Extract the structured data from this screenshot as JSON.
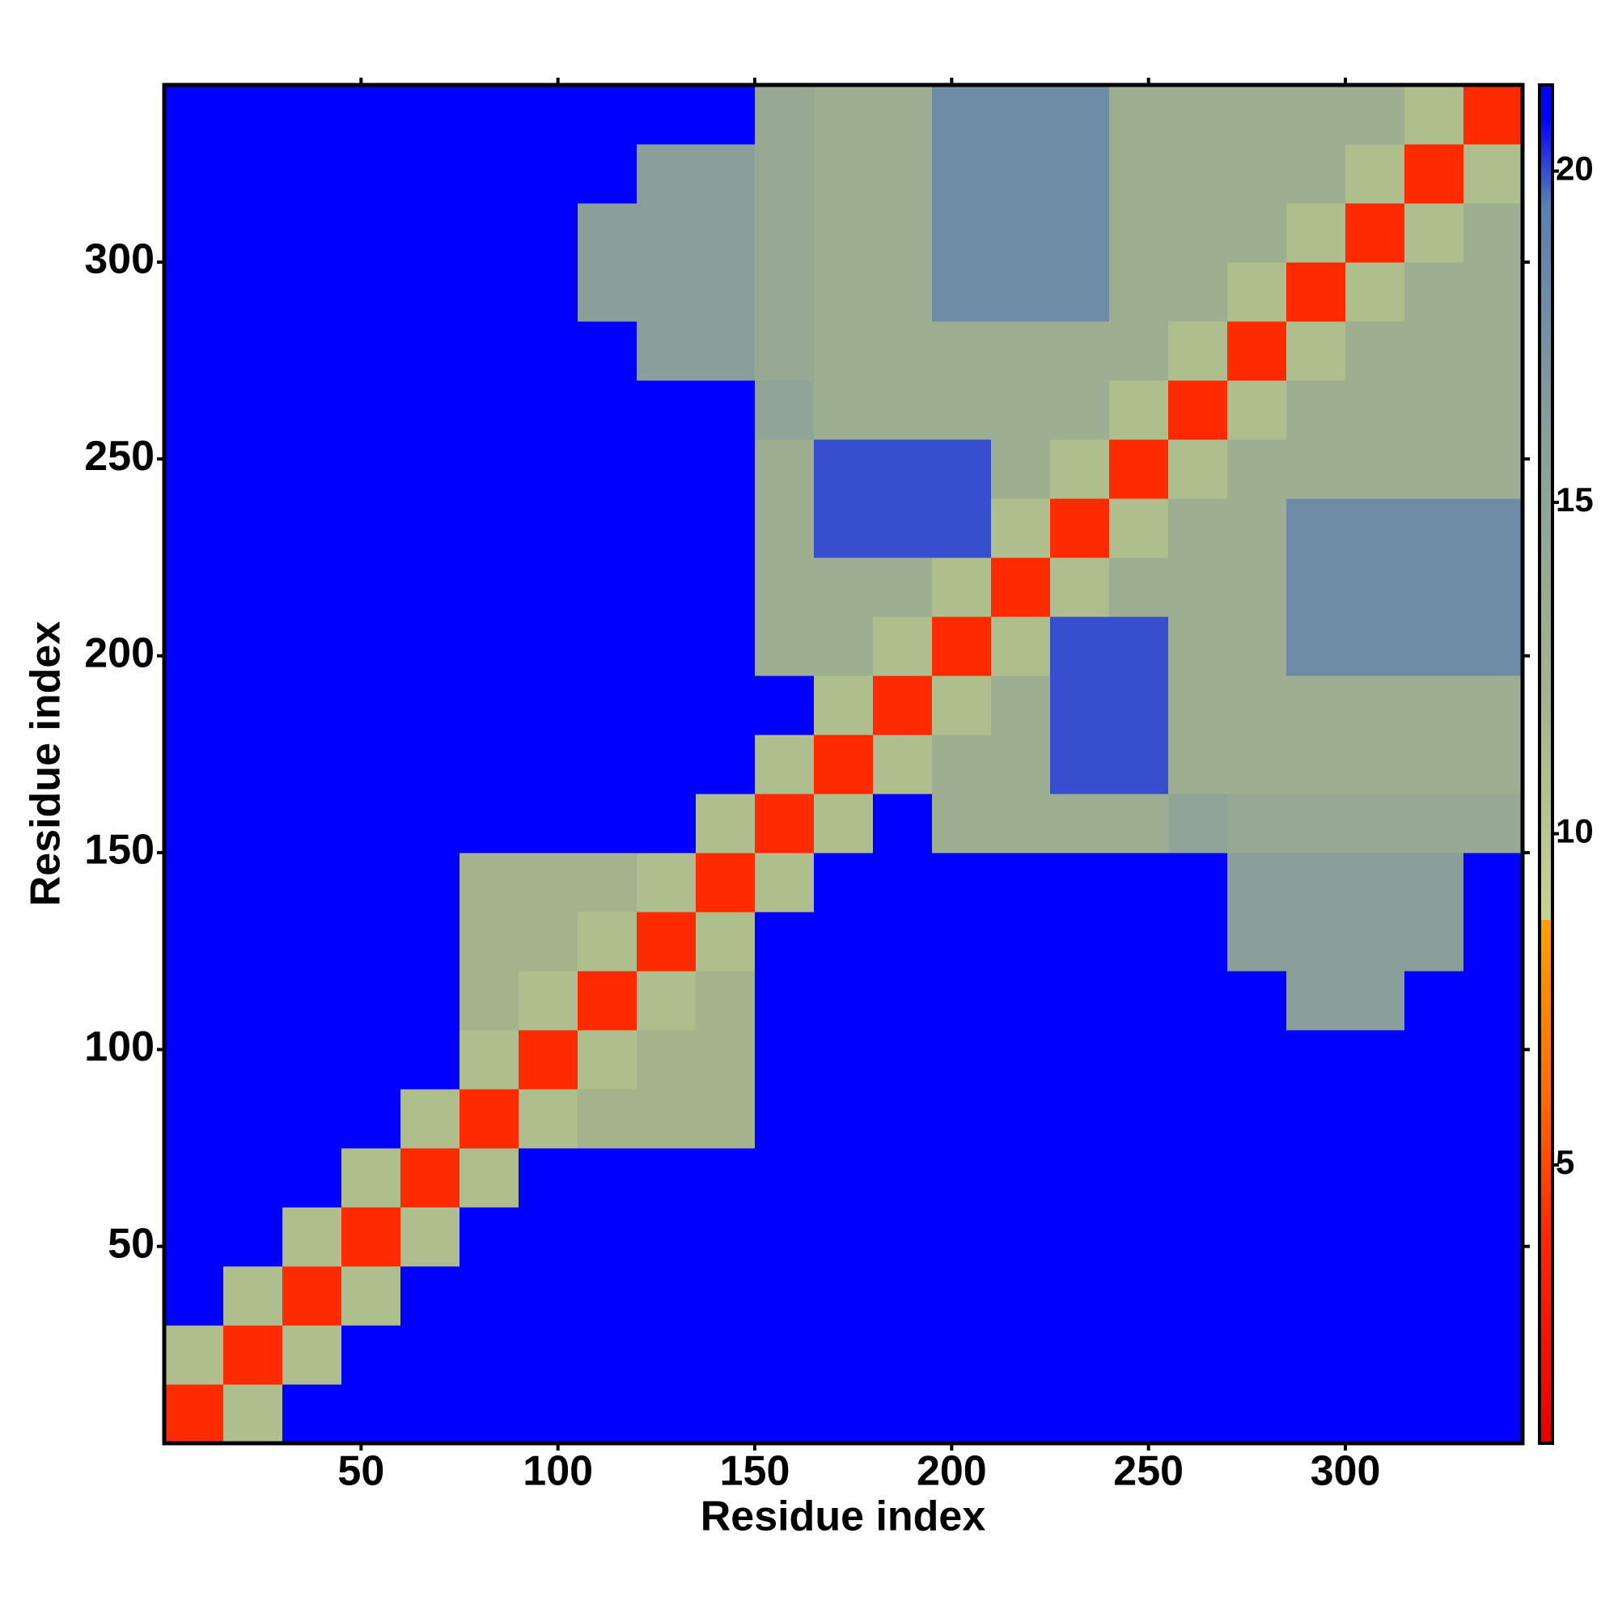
{
  "chart_data": {
    "type": "heatmap",
    "xlabel": "Residue index",
    "ylabel": "Residue index",
    "xlim": [
      0,
      345
    ],
    "ylim": [
      0,
      345
    ],
    "xticks": [
      50,
      100,
      150,
      200,
      250,
      300
    ],
    "yticks": [
      50,
      100,
      150,
      200,
      250,
      300
    ],
    "x_bins": [
      0,
      15,
      30,
      45,
      60,
      75,
      90,
      105,
      120,
      135,
      150,
      165,
      180,
      195,
      210,
      225,
      240,
      255,
      270,
      285,
      300,
      315,
      330,
      345
    ],
    "y_bins": [
      0,
      15,
      30,
      45,
      60,
      75,
      90,
      105,
      120,
      135,
      150,
      165,
      180,
      195,
      210,
      225,
      240,
      255,
      270,
      285,
      300,
      315,
      330,
      345
    ],
    "z": [
      [
        4,
        11,
        21,
        21,
        21,
        21,
        21,
        21,
        21,
        21,
        21,
        21,
        21,
        21,
        21,
        21,
        21,
        21,
        21,
        21,
        21,
        21,
        21
      ],
      [
        11,
        4,
        11,
        21,
        21,
        21,
        21,
        21,
        21,
        21,
        21,
        21,
        21,
        21,
        21,
        21,
        21,
        21,
        21,
        21,
        21,
        21,
        21
      ],
      [
        21,
        11,
        4,
        11,
        21,
        21,
        21,
        21,
        21,
        21,
        21,
        21,
        21,
        21,
        21,
        21,
        21,
        21,
        21,
        21,
        21,
        21,
        21
      ],
      [
        21,
        21,
        11,
        4,
        11,
        21,
        21,
        21,
        21,
        21,
        21,
        21,
        21,
        21,
        21,
        21,
        21,
        21,
        21,
        21,
        21,
        21,
        21
      ],
      [
        21,
        21,
        21,
        11,
        4,
        11,
        21,
        21,
        21,
        21,
        21,
        21,
        21,
        21,
        21,
        21,
        21,
        21,
        21,
        21,
        21,
        21,
        21
      ],
      [
        21,
        21,
        21,
        21,
        11,
        4,
        11,
        12,
        12,
        12,
        21,
        21,
        21,
        21,
        21,
        21,
        21,
        21,
        21,
        21,
        21,
        21,
        21
      ],
      [
        21,
        21,
        21,
        21,
        21,
        11,
        4,
        11,
        12,
        12,
        21,
        21,
        21,
        21,
        21,
        21,
        21,
        21,
        21,
        21,
        21,
        21,
        21
      ],
      [
        21,
        21,
        21,
        21,
        21,
        12,
        11,
        4,
        11,
        12,
        21,
        21,
        21,
        21,
        21,
        21,
        21,
        21,
        21,
        16,
        16,
        21,
        21
      ],
      [
        21,
        21,
        21,
        21,
        21,
        12,
        12,
        11,
        4,
        11,
        21,
        21,
        21,
        21,
        21,
        21,
        21,
        21,
        16,
        16,
        16,
        16,
        21
      ],
      [
        21,
        21,
        21,
        21,
        21,
        12,
        12,
        12,
        11,
        4,
        11,
        21,
        21,
        21,
        21,
        21,
        21,
        21,
        16,
        16,
        16,
        16,
        21
      ],
      [
        21,
        21,
        21,
        21,
        21,
        21,
        21,
        21,
        21,
        11,
        4,
        11,
        21,
        13,
        13,
        13,
        13,
        15,
        14,
        14,
        14,
        14,
        14
      ],
      [
        21,
        21,
        21,
        21,
        21,
        21,
        21,
        21,
        21,
        21,
        11,
        4,
        11,
        13,
        13,
        20,
        20,
        13,
        13,
        13,
        13,
        13,
        13
      ],
      [
        21,
        21,
        21,
        21,
        21,
        21,
        21,
        21,
        21,
        21,
        21,
        11,
        4,
        11,
        13,
        20,
        20,
        13,
        13,
        13,
        13,
        13,
        13
      ],
      [
        21,
        21,
        21,
        21,
        21,
        21,
        21,
        21,
        21,
        21,
        13,
        13,
        11,
        4,
        11,
        20,
        20,
        13,
        13,
        18,
        18,
        18,
        18
      ],
      [
        21,
        21,
        21,
        21,
        21,
        21,
        21,
        21,
        21,
        21,
        13,
        13,
        13,
        11,
        4,
        11,
        13,
        13,
        13,
        18,
        18,
        18,
        18
      ],
      [
        21,
        21,
        21,
        21,
        21,
        21,
        21,
        21,
        21,
        21,
        13,
        20,
        20,
        20,
        11,
        4,
        11,
        13,
        13,
        18,
        18,
        18,
        18
      ],
      [
        21,
        21,
        21,
        21,
        21,
        21,
        21,
        21,
        21,
        21,
        13,
        20,
        20,
        20,
        13,
        11,
        4,
        11,
        13,
        13,
        13,
        13,
        13
      ],
      [
        21,
        21,
        21,
        21,
        21,
        21,
        21,
        21,
        21,
        21,
        15,
        13,
        13,
        13,
        13,
        13,
        11,
        4,
        11,
        13,
        13,
        13,
        13
      ],
      [
        21,
        21,
        21,
        21,
        21,
        21,
        21,
        21,
        16,
        16,
        14,
        13,
        13,
        13,
        13,
        13,
        13,
        11,
        4,
        11,
        13,
        13,
        13
      ],
      [
        21,
        21,
        21,
        21,
        21,
        21,
        21,
        16,
        16,
        16,
        14,
        13,
        13,
        18,
        18,
        18,
        13,
        13,
        11,
        4,
        11,
        13,
        13
      ],
      [
        21,
        21,
        21,
        21,
        21,
        21,
        21,
        16,
        16,
        16,
        14,
        13,
        13,
        18,
        18,
        18,
        13,
        13,
        13,
        11,
        4,
        11,
        13
      ],
      [
        21,
        21,
        21,
        21,
        21,
        21,
        21,
        21,
        16,
        16,
        14,
        13,
        13,
        18,
        18,
        18,
        13,
        13,
        13,
        13,
        11,
        4,
        11
      ],
      [
        21,
        21,
        21,
        21,
        21,
        21,
        21,
        21,
        21,
        21,
        14,
        13,
        13,
        18,
        18,
        18,
        13,
        13,
        13,
        13,
        13,
        11,
        4
      ]
    ],
    "zlim": [
      0.8,
      21.3
    ],
    "zticks": [
      5,
      10,
      15,
      20
    ],
    "colorscale": [
      {
        "value": 0.8,
        "color": "#e60000"
      },
      {
        "value": 4,
        "color": "#ff2a00"
      },
      {
        "value": 6,
        "color": "#ff6a00"
      },
      {
        "value": 8.7,
        "color": "#ffa000"
      },
      {
        "value": 8.7,
        "color": "#c8d48c"
      },
      {
        "value": 12,
        "color": "#a3b48c"
      },
      {
        "value": 16,
        "color": "#8a9e9a"
      },
      {
        "value": 19.5,
        "color": "#5a7fb0"
      },
      {
        "value": 20.8,
        "color": "#0000ff"
      },
      {
        "value": 21.3,
        "color": "#0000ff"
      }
    ]
  }
}
